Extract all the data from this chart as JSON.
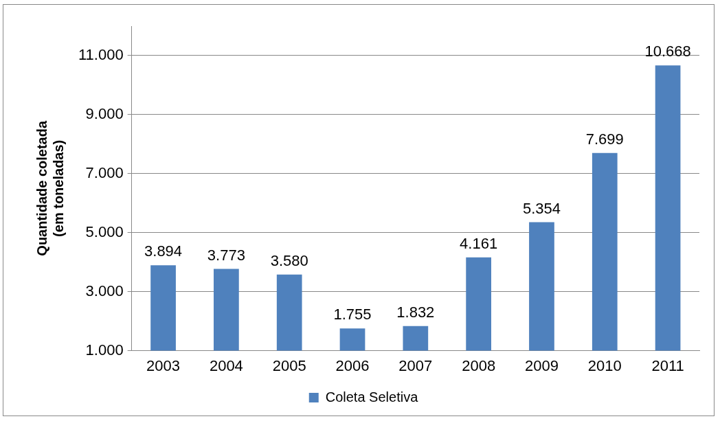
{
  "chart_data": {
    "type": "bar",
    "ylabel": "Quantidade coletada\n(em toneladas)",
    "categories": [
      "2003",
      "2004",
      "2005",
      "2006",
      "2007",
      "2008",
      "2009",
      "2010",
      "2011"
    ],
    "series": [
      {
        "name": "Coleta Seletiva",
        "color": "#4f81bd",
        "values": [
          3894,
          3773,
          3580,
          1755,
          1832,
          4161,
          5354,
          7699,
          10668
        ],
        "value_labels": [
          "3.894",
          "3.773",
          "3.580",
          "1.755",
          "1.832",
          "4.161",
          "5.354",
          "7.699",
          "10.668"
        ]
      }
    ],
    "ylim": [
      1000,
      12000
    ],
    "yticks": [
      {
        "value": 1000,
        "label": "1.000"
      },
      {
        "value": 3000,
        "label": "3.000"
      },
      {
        "value": 5000,
        "label": "5.000"
      },
      {
        "value": 7000,
        "label": "7.000"
      },
      {
        "value": 9000,
        "label": "9.000"
      },
      {
        "value": 11000,
        "label": "11.000"
      }
    ],
    "grid": "y",
    "legend": "bottom"
  }
}
